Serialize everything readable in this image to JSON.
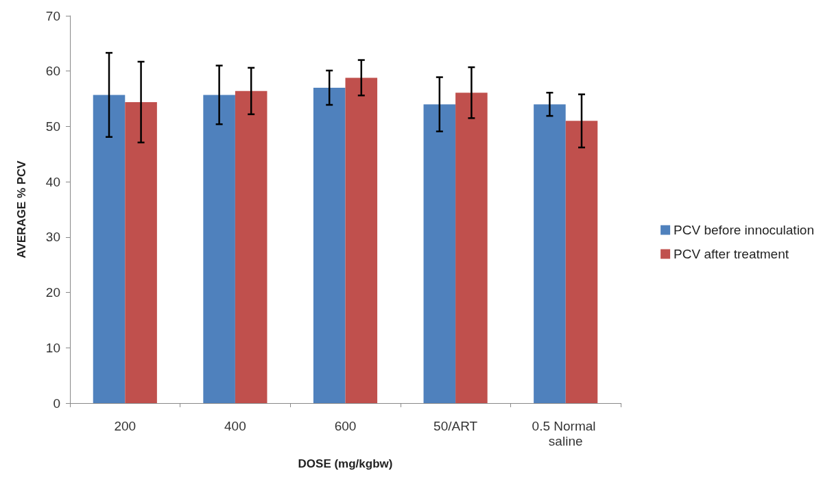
{
  "chart_data": {
    "type": "bar",
    "xlabel": "DOSE (mg/kgbw)",
    "ylabel": "AVERAGE % PCV",
    "categories": [
      "200",
      "400",
      "600",
      "50/ART",
      "0.5 Normal saline"
    ],
    "series": [
      {
        "name": "PCV before innoculation",
        "color": "#4f81bd",
        "values": [
          55.7,
          55.7,
          57.0,
          54.0,
          54.0
        ],
        "errors": [
          7.6,
          5.3,
          3.1,
          4.9,
          2.1
        ]
      },
      {
        "name": "PCV after treatment",
        "color": "#c0504d",
        "values": [
          54.4,
          56.4,
          58.8,
          56.1,
          51.0
        ],
        "errors": [
          7.3,
          4.2,
          3.2,
          4.6,
          4.8
        ]
      }
    ],
    "ylim": [
      0,
      70
    ],
    "yticks": [
      0,
      10,
      20,
      30,
      40,
      50,
      60,
      70
    ],
    "grid": false,
    "legend": "right"
  }
}
